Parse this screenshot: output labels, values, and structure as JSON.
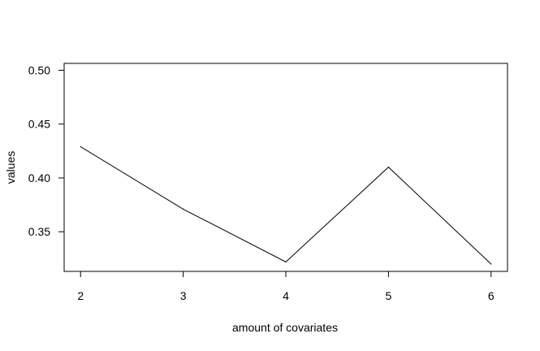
{
  "chart_data": {
    "type": "line",
    "title": "",
    "xlabel": "amount of covariates",
    "ylabel": "values",
    "x": [
      2,
      3,
      4,
      5,
      6
    ],
    "series": [
      {
        "name": "values",
        "values": [
          0.429,
          0.371,
          0.322,
          0.41,
          0.32
        ]
      }
    ],
    "xlim": [
      1.84,
      6.16
    ],
    "ylim": [
      0.3132,
      0.5064
    ],
    "x_ticks": [
      2,
      3,
      4,
      5,
      6
    ],
    "x_tick_labels": [
      "2",
      "3",
      "4",
      "5",
      "6"
    ],
    "y_ticks": [
      0.35,
      0.4,
      0.45,
      0.5
    ],
    "y_tick_labels": [
      "0.35",
      "0.40",
      "0.45",
      "0.50"
    ],
    "grid": false,
    "legend": "none",
    "line_color": "#000000"
  }
}
